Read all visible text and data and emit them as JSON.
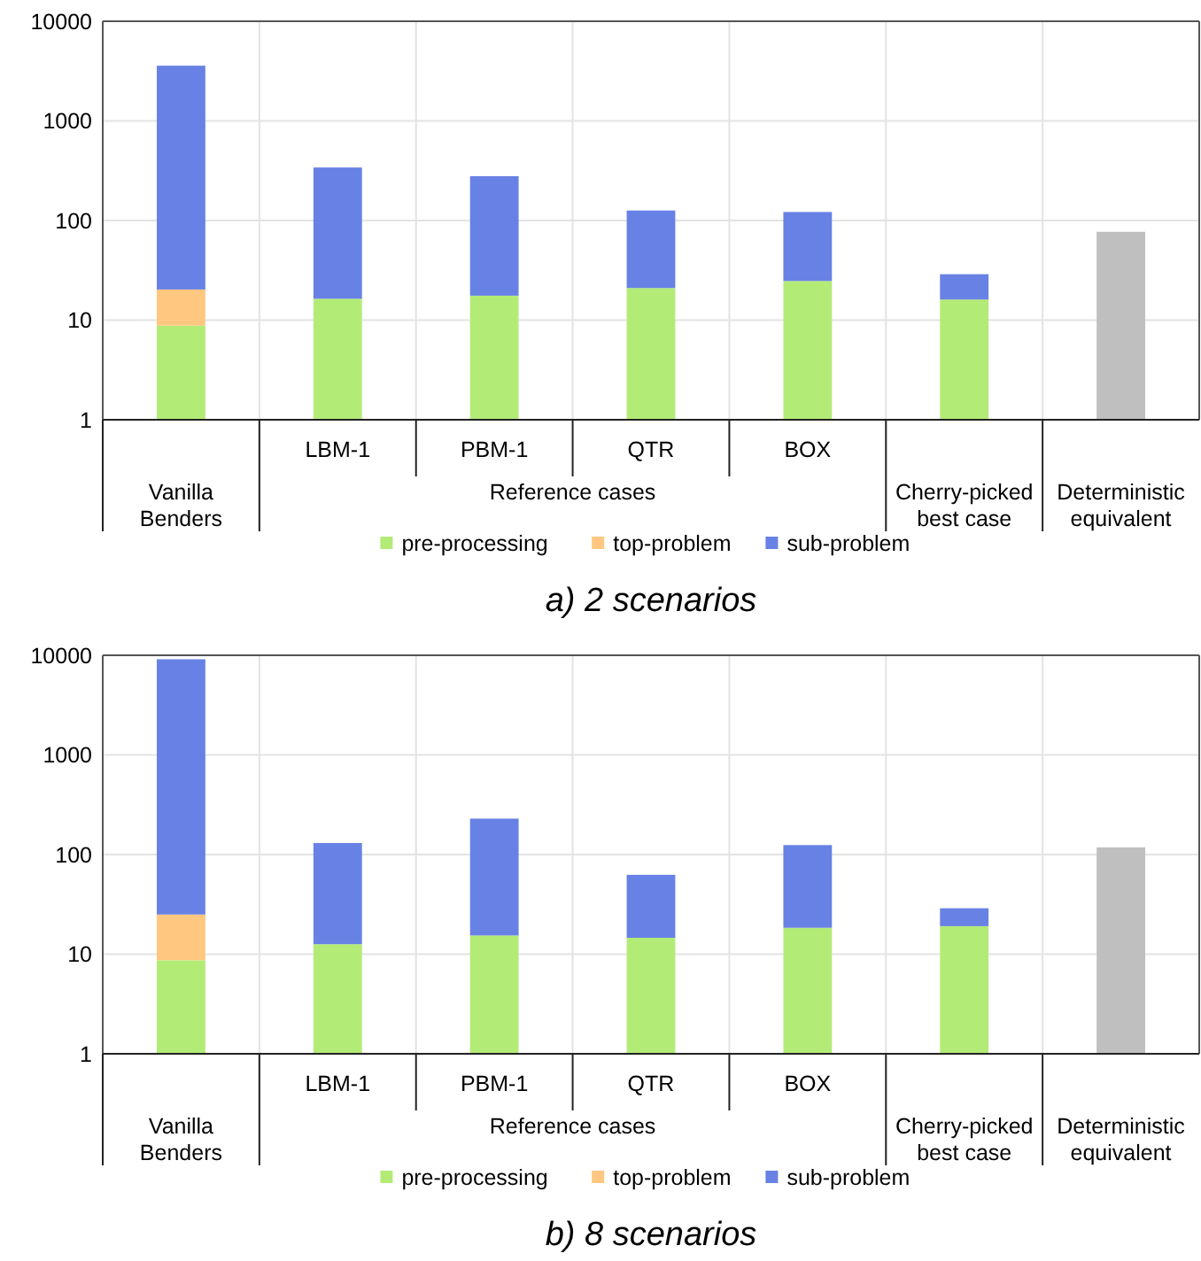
{
  "chart_data": [
    {
      "type": "bar",
      "title": "a) 2 scenarios",
      "stacked": true,
      "log": "y",
      "grid": true,
      "legend": "bottom",
      "categories": [
        "Vanilla Benders",
        "LBM-1",
        "PBM-1",
        "QTR",
        "BOX",
        "Cherry-picked best case",
        "Deterministic equivalent"
      ],
      "annotations": [
        "Reference cases"
      ],
      "ylim": [
        1,
        10000
      ],
      "yticks": [
        1,
        10,
        100,
        1000,
        10000
      ],
      "series": [
        {
          "name": "pre-processing",
          "color": "#b3eb77",
          "values": [
            8.8,
            16.4,
            17.6,
            21,
            24.7,
            16.1,
            null
          ]
        },
        {
          "name": "top-problem",
          "color": "#ffc77f",
          "values": [
            11.5,
            null,
            null,
            null,
            null,
            null,
            null
          ]
        },
        {
          "name": "sub-problem",
          "color": "#6881e4",
          "values": [
            3560,
            324,
            261,
            105,
            97,
            12.8,
            null
          ]
        },
        {
          "color": "#bfbfbf",
          "values": [
            null,
            null,
            null,
            null,
            null,
            null,
            77
          ]
        }
      ]
    },
    {
      "type": "bar",
      "title": "b) 8 scenarios",
      "stacked": true,
      "log": "y",
      "grid": true,
      "legend": "bottom",
      "categories": [
        "Vanilla Benders",
        "LBM-1",
        "PBM-1",
        "QTR",
        "BOX",
        "Cherry-picked best case",
        "Deterministic equivalent"
      ],
      "annotations": [
        "Reference cases"
      ],
      "ylim": [
        1,
        10000
      ],
      "yticks": [
        1,
        10,
        100,
        1000,
        10000
      ],
      "series": [
        {
          "name": "pre-processing",
          "color": "#b3eb77",
          "values": [
            8.7,
            12.6,
            15.4,
            14.6,
            18.4,
            19.1,
            null
          ]
        },
        {
          "name": "top-problem",
          "color": "#ffc77f",
          "values": [
            16.3,
            null,
            null,
            null,
            null,
            null,
            null
          ]
        },
        {
          "name": "sub-problem",
          "color": "#6881e4",
          "values": [
            9100,
            118,
            214,
            48,
            106,
            9.8,
            null
          ]
        },
        {
          "color": "#bfbfbf",
          "values": [
            null,
            null,
            null,
            null,
            null,
            null,
            118
          ]
        }
      ]
    }
  ]
}
